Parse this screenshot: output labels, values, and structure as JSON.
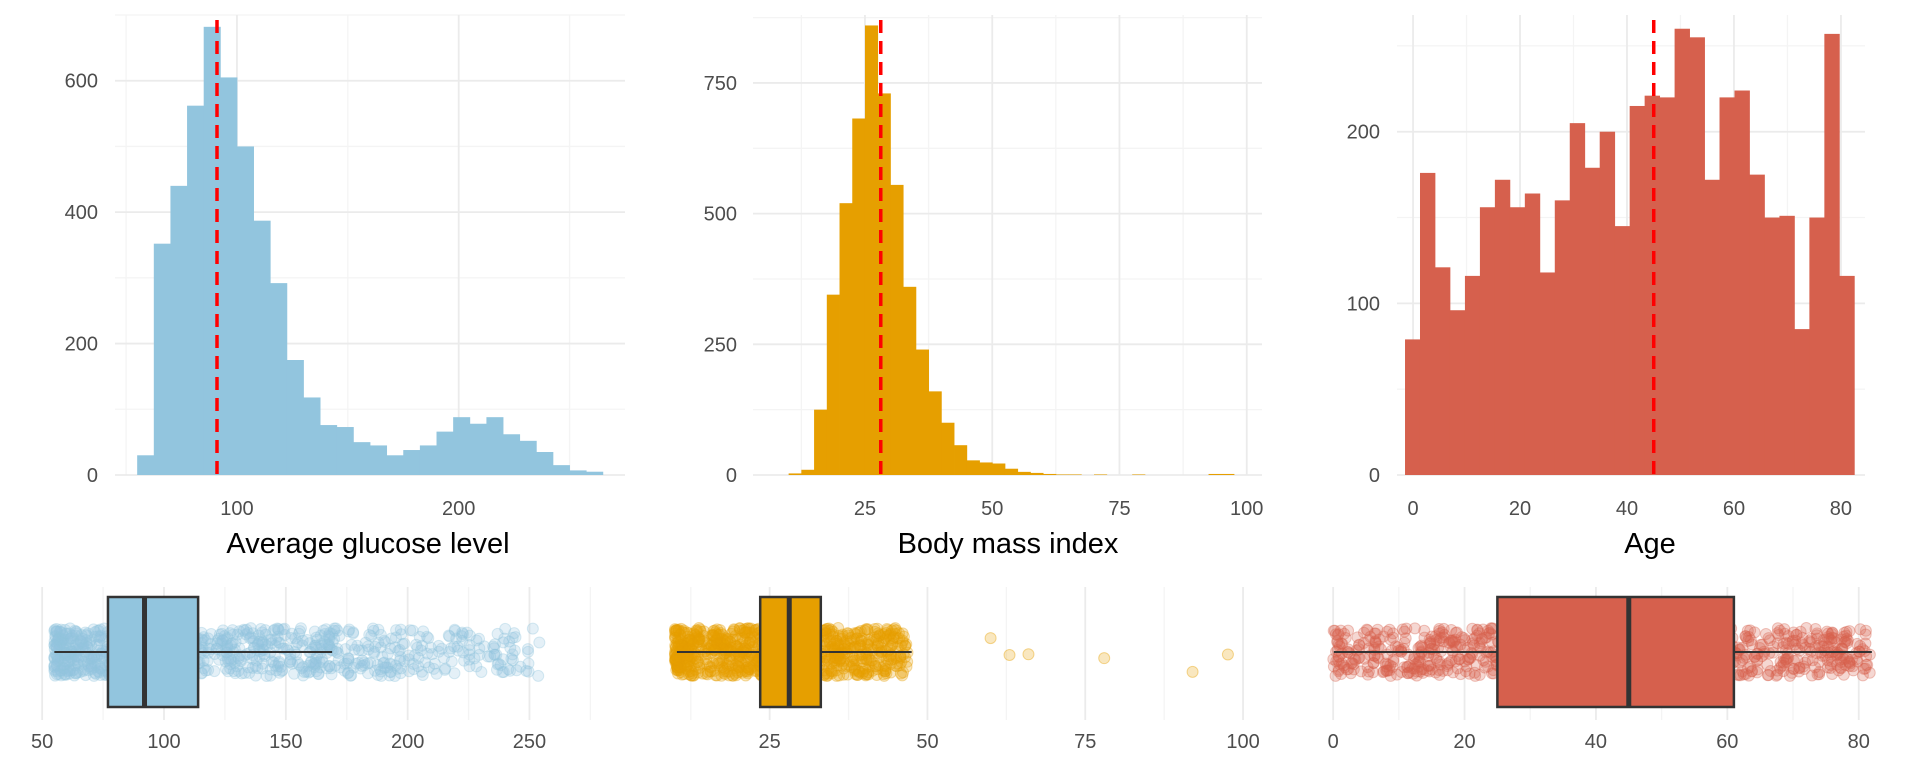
{
  "figure": {
    "background": "#ffffff",
    "grid_major": "#ebebeb",
    "grid_minor": "#f4f4f4",
    "mean_line_color": "#ff0000"
  },
  "chart_data": [
    {
      "type": "histogram",
      "xlabel": "Average glucose level",
      "color": "#92c5de",
      "xlim": [
        45,
        275
      ],
      "ylim": [
        0,
        700
      ],
      "x_ticks": [
        100,
        200
      ],
      "y_ticks": [
        0,
        200,
        400,
        600
      ],
      "grid": true,
      "dashed_line_x": 91,
      "bins": [
        {
          "x0": 55,
          "x1": 62.5,
          "count": 30
        },
        {
          "x0": 62.5,
          "x1": 70,
          "count": 352
        },
        {
          "x0": 70,
          "x1": 77.5,
          "count": 440
        },
        {
          "x0": 77.5,
          "x1": 85,
          "count": 562
        },
        {
          "x0": 85,
          "x1": 92.5,
          "count": 682
        },
        {
          "x0": 92.5,
          "x1": 100,
          "count": 605
        },
        {
          "x0": 100,
          "x1": 107.5,
          "count": 500
        },
        {
          "x0": 107.5,
          "x1": 115,
          "count": 387
        },
        {
          "x0": 115,
          "x1": 122.5,
          "count": 292
        },
        {
          "x0": 122.5,
          "x1": 130,
          "count": 175
        },
        {
          "x0": 130,
          "x1": 137.5,
          "count": 118
        },
        {
          "x0": 137.5,
          "x1": 145,
          "count": 76
        },
        {
          "x0": 145,
          "x1": 152.5,
          "count": 73
        },
        {
          "x0": 152.5,
          "x1": 160,
          "count": 50
        },
        {
          "x0": 160,
          "x1": 167.5,
          "count": 45
        },
        {
          "x0": 167.5,
          "x1": 175,
          "count": 30
        },
        {
          "x0": 175,
          "x1": 182.5,
          "count": 38
        },
        {
          "x0": 182.5,
          "x1": 190,
          "count": 45
        },
        {
          "x0": 190,
          "x1": 197.5,
          "count": 66
        },
        {
          "x0": 197.5,
          "x1": 205,
          "count": 88
        },
        {
          "x0": 205,
          "x1": 212.5,
          "count": 78
        },
        {
          "x0": 212.5,
          "x1": 220,
          "count": 88
        },
        {
          "x0": 220,
          "x1": 227.5,
          "count": 62
        },
        {
          "x0": 227.5,
          "x1": 235,
          "count": 52
        },
        {
          "x0": 235,
          "x1": 242.5,
          "count": 35
        },
        {
          "x0": 242.5,
          "x1": 250,
          "count": 15
        },
        {
          "x0": 250,
          "x1": 257.5,
          "count": 7
        },
        {
          "x0": 257.5,
          "x1": 265,
          "count": 5
        }
      ],
      "boxplot": {
        "x_ticks": [
          50,
          100,
          150,
          200,
          250
        ],
        "q1": 77,
        "median": 92,
        "q3": 114,
        "whisker_low": 55,
        "whisker_high": 169,
        "points_range": [
          55,
          271
        ],
        "dense_to": 180,
        "mid_band": [
          180,
          200
        ],
        "second_cluster": [
          200,
          255
        ]
      }
    },
    {
      "type": "histogram",
      "xlabel": "Body mass index",
      "color": "#e69f00",
      "xlim": [
        3,
        103
      ],
      "ylim": [
        0,
        880
      ],
      "x_ticks": [
        25,
        50,
        75,
        100
      ],
      "y_ticks": [
        0,
        250,
        500,
        750
      ],
      "grid": true,
      "dashed_line_x": 28.1,
      "bins": [
        {
          "x0": 10,
          "x1": 12.5,
          "count": 3
        },
        {
          "x0": 12.5,
          "x1": 15,
          "count": 10
        },
        {
          "x0": 15,
          "x1": 17.5,
          "count": 125
        },
        {
          "x0": 17.5,
          "x1": 20,
          "count": 345
        },
        {
          "x0": 20,
          "x1": 22.5,
          "count": 520
        },
        {
          "x0": 22.5,
          "x1": 25,
          "count": 682
        },
        {
          "x0": 25,
          "x1": 27.5,
          "count": 860
        },
        {
          "x0": 27.5,
          "x1": 30,
          "count": 730
        },
        {
          "x0": 30,
          "x1": 32.5,
          "count": 555
        },
        {
          "x0": 32.5,
          "x1": 35,
          "count": 360
        },
        {
          "x0": 35,
          "x1": 37.5,
          "count": 240
        },
        {
          "x0": 37.5,
          "x1": 40,
          "count": 160
        },
        {
          "x0": 40,
          "x1": 42.5,
          "count": 100
        },
        {
          "x0": 42.5,
          "x1": 45,
          "count": 57
        },
        {
          "x0": 45,
          "x1": 47.5,
          "count": 28
        },
        {
          "x0": 47.5,
          "x1": 50,
          "count": 24
        },
        {
          "x0": 50,
          "x1": 52.5,
          "count": 22
        },
        {
          "x0": 52.5,
          "x1": 55,
          "count": 12
        },
        {
          "x0": 55,
          "x1": 57.5,
          "count": 6
        },
        {
          "x0": 57.5,
          "x1": 60,
          "count": 4
        },
        {
          "x0": 60,
          "x1": 62.5,
          "count": 2
        },
        {
          "x0": 62.5,
          "x1": 65,
          "count": 1
        },
        {
          "x0": 65,
          "x1": 67.5,
          "count": 1
        },
        {
          "x0": 70,
          "x1": 72.5,
          "count": 1
        },
        {
          "x0": 77.5,
          "x1": 80,
          "count": 1
        },
        {
          "x0": 92.5,
          "x1": 97.5,
          "count": 2
        }
      ],
      "boxplot": {
        "x_ticks": [
          25,
          50,
          75,
          100
        ],
        "q1": 23.5,
        "median": 28.1,
        "q3": 33.1,
        "whisker_low": 10.3,
        "whisker_high": 47.5,
        "points_range": [
          10,
          56
        ],
        "dense_to": 47,
        "outliers": [
          60,
          63,
          66,
          78,
          92,
          97.6
        ]
      }
    },
    {
      "type": "histogram",
      "xlabel": "Age",
      "color": "#d6604d",
      "xlim": [
        -3,
        84.5
      ],
      "ylim": [
        0,
        268
      ],
      "x_ticks": [
        0,
        20,
        40,
        60,
        80
      ],
      "y_ticks": [
        0,
        100,
        200
      ],
      "grid": true,
      "dashed_line_x": 45,
      "bins": [
        {
          "x0": -1.5,
          "x1": 1.3,
          "count": 79
        },
        {
          "x0": 1.3,
          "x1": 4.1,
          "count": 176
        },
        {
          "x0": 4.1,
          "x1": 6.9,
          "count": 121
        },
        {
          "x0": 6.9,
          "x1": 9.7,
          "count": 96
        },
        {
          "x0": 9.7,
          "x1": 12.5,
          "count": 116
        },
        {
          "x0": 12.5,
          "x1": 15.3,
          "count": 156
        },
        {
          "x0": 15.3,
          "x1": 18.1,
          "count": 172
        },
        {
          "x0": 18.1,
          "x1": 20.9,
          "count": 156
        },
        {
          "x0": 20.9,
          "x1": 23.7,
          "count": 164
        },
        {
          "x0": 23.7,
          "x1": 26.5,
          "count": 118
        },
        {
          "x0": 26.5,
          "x1": 29.3,
          "count": 160
        },
        {
          "x0": 29.3,
          "x1": 32.1,
          "count": 205
        },
        {
          "x0": 32.1,
          "x1": 34.9,
          "count": 179
        },
        {
          "x0": 34.9,
          "x1": 37.7,
          "count": 200
        },
        {
          "x0": 37.7,
          "x1": 40.5,
          "count": 145
        },
        {
          "x0": 40.5,
          "x1": 43.3,
          "count": 215
        },
        {
          "x0": 43.3,
          "x1": 46.1,
          "count": 221
        },
        {
          "x0": 46.1,
          "x1": 48.9,
          "count": 220
        },
        {
          "x0": 48.9,
          "x1": 51.7,
          "count": 260
        },
        {
          "x0": 51.7,
          "x1": 54.5,
          "count": 255
        },
        {
          "x0": 54.5,
          "x1": 57.3,
          "count": 172
        },
        {
          "x0": 57.3,
          "x1": 60.1,
          "count": 220
        },
        {
          "x0": 60.1,
          "x1": 62.9,
          "count": 224
        },
        {
          "x0": 62.9,
          "x1": 65.7,
          "count": 175
        },
        {
          "x0": 65.7,
          "x1": 68.5,
          "count": 150
        },
        {
          "x0": 68.5,
          "x1": 71.3,
          "count": 151
        },
        {
          "x0": 71.3,
          "x1": 74.1,
          "count": 85
        },
        {
          "x0": 74.1,
          "x1": 76.9,
          "count": 150
        },
        {
          "x0": 76.9,
          "x1": 79.7,
          "count": 257
        },
        {
          "x0": 79.7,
          "x1": 82.5,
          "count": 116
        }
      ],
      "boxplot": {
        "x_ticks": [
          0,
          20,
          40,
          60,
          80
        ],
        "q1": 25,
        "median": 45,
        "q3": 61,
        "whisker_low": 0.1,
        "whisker_high": 82,
        "points_range": [
          0,
          82
        ],
        "dense_to": 82
      }
    }
  ]
}
